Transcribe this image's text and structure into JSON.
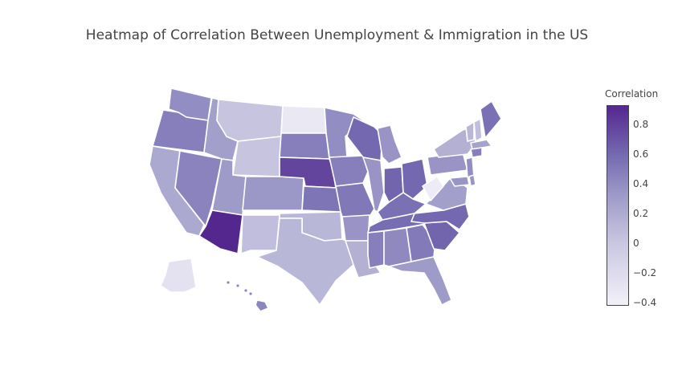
{
  "title": "Heatmap of Correlation Between Unemployment & Immigration in the US",
  "colorbar": {
    "title": "Correlation",
    "ticks": [
      {
        "value": 0.8,
        "label": "0.8"
      },
      {
        "value": 0.6,
        "label": "0.6"
      },
      {
        "value": 0.4,
        "label": "0.4"
      },
      {
        "value": 0.2,
        "label": "0.2"
      },
      {
        "value": 0,
        "label": "0"
      },
      {
        "value": -0.2,
        "label": "−0.2"
      },
      {
        "value": -0.4,
        "label": "−0.4"
      }
    ],
    "min": -0.42,
    "max": 0.93,
    "colors": [
      "#f2f0f7",
      "#cbc9e2",
      "#9e9ac8",
      "#756bb1",
      "#54278f"
    ]
  },
  "chart_data": {
    "type": "choropleth",
    "locationmode": "USA-states",
    "z_range": [
      -0.42,
      0.93
    ],
    "values": {
      "WA": 0.35,
      "OR": 0.45,
      "CA": 0.15,
      "NV": 0.42,
      "ID": 0.22,
      "MT": -0.05,
      "WY": -0.05,
      "UT": 0.25,
      "AZ": 0.93,
      "CO": 0.28,
      "NM": 0.0,
      "TX": 0.05,
      "ND": -0.35,
      "SD": 0.45,
      "NE": 0.78,
      "KS": 0.52,
      "OK": 0.05,
      "MN": 0.35,
      "IA": 0.45,
      "MO": 0.5,
      "AR": 0.3,
      "LA": 0.1,
      "WI": 0.6,
      "IL": 0.3,
      "MI": 0.3,
      "IN": 0.62,
      "OH": 0.6,
      "KY": 0.55,
      "TN": 0.58,
      "MS": 0.45,
      "AL": 0.38,
      "GA": 0.48,
      "FL": 0.25,
      "SC": 0.62,
      "NC": 0.6,
      "VA": 0.22,
      "WV": -0.38,
      "PA": 0.3,
      "NY": 0.1,
      "VT": 0.05,
      "NH": 0.0,
      "ME": 0.55,
      "MA": 0.2,
      "CT": 0.45,
      "NJ": 0.35,
      "MD": 0.3,
      "DE": 0.3,
      "AK": -0.3,
      "HI": 0.4
    }
  }
}
